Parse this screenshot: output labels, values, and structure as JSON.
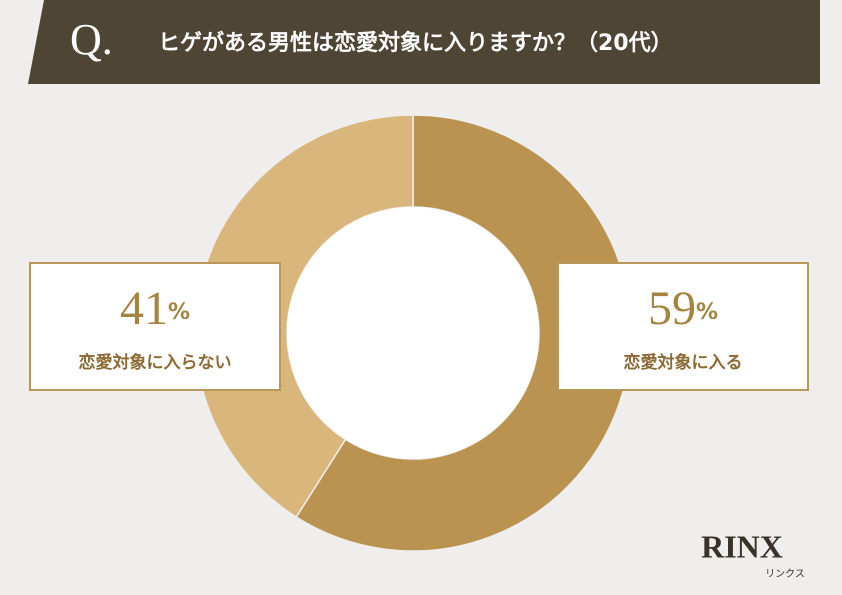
{
  "badge": "Q.",
  "chart_data": {
    "type": "donut",
    "title": "ヒゲがある男性は恋愛対象に入りますか？（20代）",
    "categories": [
      "恋愛対象に入る",
      "恋愛対象に入らない"
    ],
    "values": [
      59,
      41
    ],
    "value_labels": [
      "59%",
      "41%"
    ],
    "colors": [
      "#bb9351",
      "#d9b67b"
    ]
  },
  "logo": {
    "name": "RINX",
    "kana": "リンクス"
  }
}
